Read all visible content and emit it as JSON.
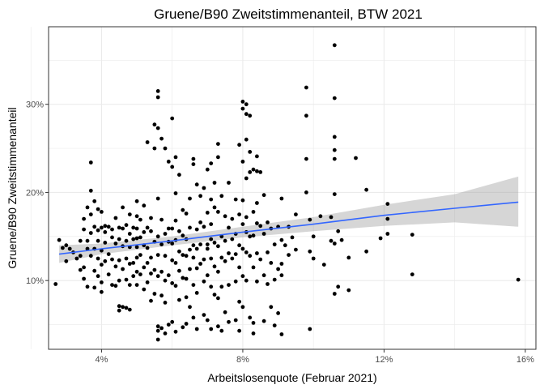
{
  "chart_data": {
    "type": "scatter",
    "title": "Gruene/B90 Zweitstimmenanteil, BTW 2021",
    "xlabel": "Arbeitslosenquote (Februar 2021)",
    "ylabel": "Gruene/B90 Zweitstimmenanteil",
    "xlim": [
      2.5,
      16.3
    ],
    "ylim": [
      2.2,
      38.8
    ],
    "x_ticks": [
      4,
      8,
      12,
      16
    ],
    "x_tick_labels": [
      "4%",
      "8%",
      "12%",
      "16%"
    ],
    "x_minor_ticks": [
      2,
      6,
      10,
      14
    ],
    "y_ticks": [
      10,
      20,
      30
    ],
    "y_tick_labels": [
      "10%",
      "20%",
      "30%"
    ],
    "y_minor_ticks": [
      5,
      15,
      25,
      35
    ],
    "grid": true,
    "colors": {
      "points": "#000000",
      "trend_line": "#3366FF",
      "confidence_band": "#999999",
      "panel_border": "#333333",
      "grid": "#EBEBEB"
    },
    "trend": {
      "x": [
        2.8,
        4,
        6,
        8,
        10,
        12,
        14,
        15.8
      ],
      "fit": [
        13.0,
        13.6,
        14.5,
        15.5,
        16.4,
        17.4,
        18.2,
        18.9
      ],
      "lower": [
        12.0,
        13.0,
        14.0,
        14.9,
        15.6,
        16.2,
        16.6,
        16.1
      ],
      "upper": [
        14.0,
        14.2,
        15.0,
        16.1,
        17.2,
        18.6,
        19.8,
        21.8
      ]
    },
    "points": [
      [
        2.7,
        9.6
      ],
      [
        2.8,
        14.6
      ],
      [
        2.9,
        13.7
      ],
      [
        3.0,
        14.0
      ],
      [
        3.0,
        12.2
      ],
      [
        3.1,
        13.6
      ],
      [
        3.2,
        13.2
      ],
      [
        3.3,
        12.5
      ],
      [
        3.4,
        12.8
      ],
      [
        3.4,
        11.2
      ],
      [
        3.4,
        14.5
      ],
      [
        3.5,
        15.8
      ],
      [
        3.5,
        17.0
      ],
      [
        3.5,
        11.5
      ],
      [
        3.5,
        10.2
      ],
      [
        3.6,
        18.3
      ],
      [
        3.6,
        14.5
      ],
      [
        3.6,
        13.6
      ],
      [
        3.6,
        9.3
      ],
      [
        3.7,
        23.4
      ],
      [
        3.7,
        20.2
      ],
      [
        3.7,
        17.5
      ],
      [
        3.7,
        15.4
      ],
      [
        3.7,
        12.8
      ],
      [
        3.8,
        19.0
      ],
      [
        3.8,
        16.1
      ],
      [
        3.8,
        13.6
      ],
      [
        3.8,
        11.1
      ],
      [
        3.8,
        9.2
      ],
      [
        3.9,
        18.1
      ],
      [
        3.9,
        15.7
      ],
      [
        3.9,
        14.5
      ],
      [
        3.9,
        12.5
      ],
      [
        3.9,
        10.5
      ],
      [
        4.0,
        17.8
      ],
      [
        4.0,
        16.0
      ],
      [
        4.0,
        13.4
      ],
      [
        4.0,
        11.8
      ],
      [
        4.0,
        9.8
      ],
      [
        4.0,
        8.7
      ],
      [
        4.1,
        16.2
      ],
      [
        4.1,
        15.5
      ],
      [
        4.1,
        14.3
      ],
      [
        4.1,
        12.2
      ],
      [
        4.2,
        16.1
      ],
      [
        4.2,
        13.0
      ],
      [
        4.2,
        10.7
      ],
      [
        4.3,
        15.8
      ],
      [
        4.3,
        14.9
      ],
      [
        4.3,
        12.4
      ],
      [
        4.3,
        9.5
      ],
      [
        4.4,
        17.1
      ],
      [
        4.4,
        14.2
      ],
      [
        4.4,
        11.6
      ],
      [
        4.4,
        9.4
      ],
      [
        4.5,
        16.0
      ],
      [
        4.5,
        14.7
      ],
      [
        4.5,
        12.3
      ],
      [
        4.5,
        10.0
      ],
      [
        4.5,
        7.1
      ],
      [
        4.5,
        6.6
      ],
      [
        4.6,
        18.3
      ],
      [
        4.6,
        15.9
      ],
      [
        4.6,
        13.9
      ],
      [
        4.6,
        11.3
      ],
      [
        4.6,
        7.0
      ],
      [
        4.7,
        16.3
      ],
      [
        4.7,
        14.5
      ],
      [
        4.7,
        12.5
      ],
      [
        4.7,
        10.1
      ],
      [
        4.7,
        6.9
      ],
      [
        4.8,
        17.5
      ],
      [
        4.8,
        15.3
      ],
      [
        4.8,
        13.8
      ],
      [
        4.8,
        11.9
      ],
      [
        4.8,
        9.5
      ],
      [
        4.8,
        6.7
      ],
      [
        4.9,
        16.0
      ],
      [
        4.9,
        14.7
      ],
      [
        4.9,
        12.0
      ],
      [
        4.9,
        10.5
      ],
      [
        5.0,
        19.0
      ],
      [
        5.0,
        17.3
      ],
      [
        5.0,
        15.9
      ],
      [
        5.0,
        14.8
      ],
      [
        5.0,
        13.8
      ],
      [
        5.0,
        12.6
      ],
      [
        5.0,
        11.0
      ],
      [
        5.0,
        9.5
      ],
      [
        5.1,
        16.9
      ],
      [
        5.1,
        14.9
      ],
      [
        5.1,
        12.9
      ],
      [
        5.1,
        10.7
      ],
      [
        5.2,
        18.5
      ],
      [
        5.2,
        15.5
      ],
      [
        5.2,
        14.0
      ],
      [
        5.2,
        11.5
      ],
      [
        5.2,
        9.0
      ],
      [
        5.3,
        25.7
      ],
      [
        5.3,
        16.0
      ],
      [
        5.3,
        13.7
      ],
      [
        5.3,
        12.0
      ],
      [
        5.3,
        9.8
      ],
      [
        5.4,
        17.1
      ],
      [
        5.4,
        15.6
      ],
      [
        5.4,
        12.6
      ],
      [
        5.4,
        10.8
      ],
      [
        5.4,
        7.7
      ],
      [
        5.5,
        27.7
      ],
      [
        5.5,
        25.0
      ],
      [
        5.5,
        14.4
      ],
      [
        5.5,
        11.2
      ],
      [
        5.5,
        8.5
      ],
      [
        5.6,
        31.5
      ],
      [
        5.6,
        30.8
      ],
      [
        5.6,
        27.3
      ],
      [
        5.6,
        19.3
      ],
      [
        5.6,
        15.0
      ],
      [
        5.6,
        12.9
      ],
      [
        5.6,
        10.5
      ],
      [
        5.6,
        4.8
      ],
      [
        5.6,
        4.3
      ],
      [
        5.6,
        3.3
      ],
      [
        5.7,
        26.1
      ],
      [
        5.7,
        16.9
      ],
      [
        5.7,
        14.1
      ],
      [
        5.7,
        11.0
      ],
      [
        5.7,
        8.3
      ],
      [
        5.7,
        4.6
      ],
      [
        5.8,
        25.0
      ],
      [
        5.8,
        15.3
      ],
      [
        5.8,
        12.8
      ],
      [
        5.8,
        10.0
      ],
      [
        5.8,
        7.5
      ],
      [
        5.8,
        4.0
      ],
      [
        5.9,
        23.5
      ],
      [
        5.9,
        15.9
      ],
      [
        5.9,
        14.4
      ],
      [
        5.9,
        10.6
      ],
      [
        5.9,
        5.0
      ],
      [
        6.0,
        28.4
      ],
      [
        6.0,
        22.9
      ],
      [
        6.0,
        15.9
      ],
      [
        6.0,
        14.2
      ],
      [
        6.0,
        12.3
      ],
      [
        6.0,
        9.7
      ],
      [
        6.0,
        5.3
      ],
      [
        6.1,
        24.0
      ],
      [
        6.1,
        19.9
      ],
      [
        6.1,
        16.8
      ],
      [
        6.1,
        14.6
      ],
      [
        6.1,
        12.0
      ],
      [
        6.1,
        9.4
      ],
      [
        6.1,
        4.2
      ],
      [
        6.2,
        22.0
      ],
      [
        6.2,
        15.6
      ],
      [
        6.2,
        13.3
      ],
      [
        6.2,
        11.1
      ],
      [
        6.2,
        7.8
      ],
      [
        6.3,
        18.0
      ],
      [
        6.3,
        15.1
      ],
      [
        6.3,
        12.9
      ],
      [
        6.3,
        10.3
      ],
      [
        6.3,
        4.7
      ],
      [
        6.4,
        17.6
      ],
      [
        6.4,
        14.7
      ],
      [
        6.4,
        12.8
      ],
      [
        6.4,
        10.2
      ],
      [
        6.4,
        8.1
      ],
      [
        6.4,
        5.1
      ],
      [
        6.5,
        19.3
      ],
      [
        6.5,
        16.0
      ],
      [
        6.5,
        13.5
      ],
      [
        6.5,
        11.3
      ],
      [
        6.5,
        7.0
      ],
      [
        6.6,
        23.8
      ],
      [
        6.6,
        23.2
      ],
      [
        6.6,
        14.0
      ],
      [
        6.6,
        12.6
      ],
      [
        6.6,
        9.5
      ],
      [
        6.6,
        5.8
      ],
      [
        6.7,
        20.9
      ],
      [
        6.7,
        15.8
      ],
      [
        6.7,
        13.6
      ],
      [
        6.7,
        11.4
      ],
      [
        6.7,
        8.6
      ],
      [
        6.7,
        4.5
      ],
      [
        6.8,
        19.6
      ],
      [
        6.8,
        16.6
      ],
      [
        6.8,
        14.1
      ],
      [
        6.8,
        11.9
      ],
      [
        6.9,
        20.5
      ],
      [
        6.9,
        16.1
      ],
      [
        6.9,
        12.4
      ],
      [
        6.9,
        9.9
      ],
      [
        6.9,
        6.1
      ],
      [
        7.0,
        22.6
      ],
      [
        7.0,
        17.7
      ],
      [
        7.0,
        14.1
      ],
      [
        7.0,
        13.6
      ],
      [
        7.0,
        10.6
      ],
      [
        7.0,
        5.5
      ],
      [
        7.1,
        23.3
      ],
      [
        7.1,
        19.2
      ],
      [
        7.1,
        16.4
      ],
      [
        7.1,
        14.7
      ],
      [
        7.1,
        12.5
      ],
      [
        7.1,
        9.3
      ],
      [
        7.1,
        4.5
      ],
      [
        7.2,
        21.1
      ],
      [
        7.2,
        18.3
      ],
      [
        7.2,
        14.3
      ],
      [
        7.2,
        11.6
      ],
      [
        7.2,
        8.4
      ],
      [
        7.3,
        25.5
      ],
      [
        7.3,
        24.0
      ],
      [
        7.3,
        17.8
      ],
      [
        7.3,
        13.9
      ],
      [
        7.3,
        11.0
      ],
      [
        7.3,
        8.0
      ],
      [
        7.3,
        4.8
      ],
      [
        7.4,
        19.6
      ],
      [
        7.4,
        15.0
      ],
      [
        7.4,
        12.6
      ],
      [
        7.4,
        9.3
      ],
      [
        7.4,
        4.3
      ],
      [
        7.5,
        17.3
      ],
      [
        7.5,
        14.5
      ],
      [
        7.5,
        12.2
      ],
      [
        7.5,
        6.4
      ],
      [
        7.6,
        21.1
      ],
      [
        7.6,
        16.0
      ],
      [
        7.6,
        13.1
      ],
      [
        7.6,
        9.5
      ],
      [
        7.6,
        5.3
      ],
      [
        7.7,
        17.0
      ],
      [
        7.7,
        14.7
      ],
      [
        7.7,
        12.5
      ],
      [
        7.8,
        19.2
      ],
      [
        7.8,
        15.3
      ],
      [
        7.8,
        13.0
      ],
      [
        7.8,
        9.9
      ],
      [
        7.8,
        5.5
      ],
      [
        7.9,
        25.4
      ],
      [
        7.9,
        17.5
      ],
      [
        7.9,
        14.0
      ],
      [
        7.9,
        11.5
      ],
      [
        7.9,
        7.6
      ],
      [
        7.9,
        4.3
      ],
      [
        8.0,
        30.3
      ],
      [
        8.0,
        29.5
      ],
      [
        8.0,
        23.5
      ],
      [
        8.0,
        19.1
      ],
      [
        8.0,
        16.4
      ],
      [
        8.0,
        13.6
      ],
      [
        8.0,
        10.5
      ],
      [
        8.0,
        7.0
      ],
      [
        8.1,
        30.0
      ],
      [
        8.1,
        28.9
      ],
      [
        8.1,
        26.0
      ],
      [
        8.1,
        21.6
      ],
      [
        8.1,
        17.2
      ],
      [
        8.1,
        15.5
      ],
      [
        8.1,
        13.2
      ],
      [
        8.1,
        10.0
      ],
      [
        8.2,
        28.7
      ],
      [
        8.2,
        24.6
      ],
      [
        8.2,
        22.3
      ],
      [
        8.2,
        15.0
      ],
      [
        8.2,
        12.8
      ],
      [
        8.2,
        5.8
      ],
      [
        8.3,
        22.6
      ],
      [
        8.3,
        17.8
      ],
      [
        8.3,
        15.1
      ],
      [
        8.3,
        11.5
      ],
      [
        8.3,
        5.2
      ],
      [
        8.3,
        4.0
      ],
      [
        8.4,
        24.1
      ],
      [
        8.4,
        22.4
      ],
      [
        8.4,
        18.8
      ],
      [
        8.4,
        16.5
      ],
      [
        8.4,
        13.1
      ],
      [
        8.4,
        9.9
      ],
      [
        8.5,
        22.3
      ],
      [
        8.5,
        16.2
      ],
      [
        8.5,
        12.4
      ],
      [
        8.6,
        19.7
      ],
      [
        8.6,
        15.3
      ],
      [
        8.6,
        10.6
      ],
      [
        8.6,
        5.4
      ],
      [
        8.7,
        16.6
      ],
      [
        8.7,
        13.2
      ],
      [
        8.7,
        9.6
      ],
      [
        8.8,
        15.9
      ],
      [
        8.8,
        12.0
      ],
      [
        8.8,
        7.0
      ],
      [
        8.9,
        14.1
      ],
      [
        8.9,
        10.1
      ],
      [
        8.9,
        4.9
      ],
      [
        9.0,
        16.1
      ],
      [
        9.0,
        11.3
      ],
      [
        9.0,
        6.3
      ],
      [
        9.1,
        19.3
      ],
      [
        9.1,
        14.6
      ],
      [
        9.1,
        11.9
      ],
      [
        9.1,
        10.6
      ],
      [
        9.1,
        3.9
      ],
      [
        9.2,
        14.0
      ],
      [
        9.3,
        16.1
      ],
      [
        9.3,
        12.9
      ],
      [
        9.4,
        14.9
      ],
      [
        9.5,
        17.5
      ],
      [
        9.5,
        13.5
      ],
      [
        9.8,
        31.9
      ],
      [
        9.8,
        28.7
      ],
      [
        9.8,
        23.8
      ],
      [
        9.8,
        20.0
      ],
      [
        9.9,
        16.9
      ],
      [
        9.9,
        13.3
      ],
      [
        9.9,
        4.5
      ],
      [
        10.0,
        15.0
      ],
      [
        10.0,
        12.5
      ],
      [
        10.2,
        17.3
      ],
      [
        10.3,
        11.8
      ],
      [
        10.5,
        17.2
      ],
      [
        10.5,
        14.5
      ],
      [
        10.6,
        36.7
      ],
      [
        10.6,
        30.7
      ],
      [
        10.6,
        26.3
      ],
      [
        10.6,
        24.8
      ],
      [
        10.6,
        23.8
      ],
      [
        10.6,
        19.8
      ],
      [
        10.6,
        14.2
      ],
      [
        10.6,
        8.5
      ],
      [
        10.7,
        15.6
      ],
      [
        10.7,
        9.3
      ],
      [
        10.8,
        14.6
      ],
      [
        11.0,
        12.6
      ],
      [
        11.0,
        8.9
      ],
      [
        11.2,
        23.9
      ],
      [
        11.5,
        20.3
      ],
      [
        11.5,
        13.3
      ],
      [
        11.9,
        14.8
      ],
      [
        12.1,
        18.7
      ],
      [
        12.1,
        17.0
      ],
      [
        12.1,
        15.3
      ],
      [
        12.8,
        15.2
      ],
      [
        12.8,
        10.7
      ],
      [
        15.8,
        10.1
      ]
    ]
  }
}
